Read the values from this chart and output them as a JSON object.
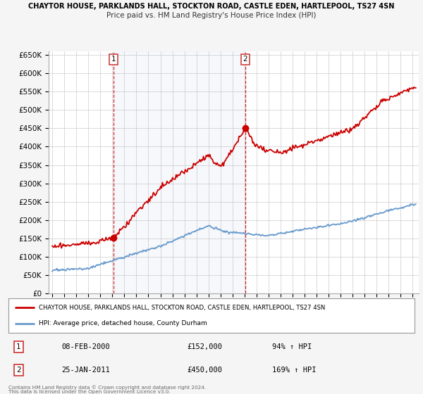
{
  "title": "CHAYTOR HOUSE, PARKLANDS HALL, STOCKTON ROAD, CASTLE EDEN, HARTLEPOOL, TS27 4SN",
  "subtitle": "Price paid vs. HM Land Registry's House Price Index (HPI)",
  "hpi_label": "HPI: Average price, detached house, County Durham",
  "property_label": "CHAYTOR HOUSE, PARKLANDS HALL, STOCKTON ROAD, CASTLE EDEN, HARTLEPOOL, TS27 4SN",
  "red_color": "#cc0000",
  "blue_color": "#6699cc",
  "marker1_date_x": 2000.1,
  "marker1_y": 152000,
  "marker2_date_x": 2011.07,
  "marker2_y": 450000,
  "vline1_x": 2000.1,
  "vline2_x": 2011.07,
  "ylim": [
    0,
    660000
  ],
  "xlim_start": 1994.7,
  "xlim_end": 2025.5,
  "footer1": "Contains HM Land Registry data © Crown copyright and database right 2024.",
  "footer2": "This data is licensed under the Open Government Licence v3.0.",
  "background_color": "#f5f5f5",
  "plot_bg_color": "#ffffff",
  "grid_color": "#cccccc",
  "info1_date": "08-FEB-2000",
  "info1_price": "£152,000",
  "info1_hpi": "94% ↑ HPI",
  "info2_date": "25-JAN-2011",
  "info2_price": "£450,000",
  "info2_hpi": "169% ↑ HPI"
}
